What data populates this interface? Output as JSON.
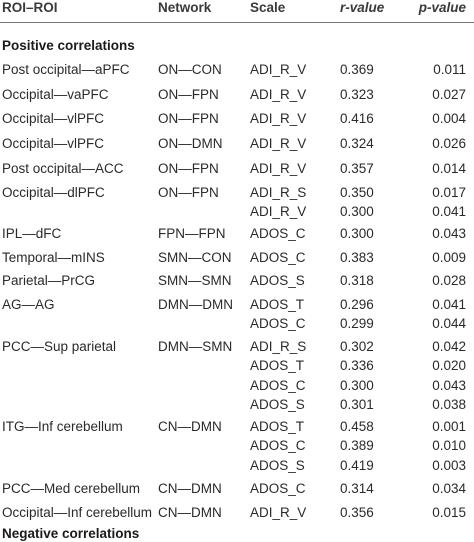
{
  "headers": {
    "roi": "ROI–ROI",
    "network": "Network",
    "scale": "Scale",
    "r": "r-value",
    "p": "p-value"
  },
  "sections": {
    "positive": "Positive correlations",
    "negative": "Negative correlations"
  },
  "rows": [
    {
      "roi": "Post occipital—aPFC",
      "network": "ON—CON",
      "scale": "ADI_R_V",
      "r": "0.369",
      "p": "0.011"
    },
    {
      "roi": "Occipital—vaPFC",
      "network": "ON—FPN",
      "scale": "ADI_R_V",
      "r": "0.323",
      "p": "0.027"
    },
    {
      "roi": "Occipital—vlPFC",
      "network": "ON—FPN",
      "scale": "ADI_R_V",
      "r": "0.416",
      "p": "0.004"
    },
    {
      "roi": "Occipital—vlPFC",
      "network": "ON—DMN",
      "scale": "ADI_R_V",
      "r": "0.324",
      "p": "0.026"
    },
    {
      "roi": "Post occipital—ACC",
      "network": "ON—FPN",
      "scale": "ADI_R_V",
      "r": "0.357",
      "p": "0.014"
    },
    {
      "roi": "Occipital—dlPFC",
      "network": "ON—FPN",
      "scale": "ADI_R_S",
      "r": "0.350",
      "p": "0.017"
    },
    {
      "roi": "",
      "network": "",
      "scale": "ADI_R_V",
      "r": "0.300",
      "p": "0.041"
    },
    {
      "roi": "IPL—dFC",
      "network": "FPN—FPN",
      "scale": "ADOS_C",
      "r": "0.300",
      "p": "0.043"
    },
    {
      "roi": "Temporal—mINS",
      "network": "SMN—CON",
      "scale": "ADOS_C",
      "r": "0.383",
      "p": "0.009"
    },
    {
      "roi": "Parietal—PrCG",
      "network": "SMN—SMN",
      "scale": "ADOS_S",
      "r": "0.318",
      "p": "0.028"
    },
    {
      "roi": "AG—AG",
      "network": "DMN—DMN",
      "scale": "ADOS_T",
      "r": "0.296",
      "p": "0.041"
    },
    {
      "roi": "",
      "network": "",
      "scale": "ADOS_C",
      "r": "0.299",
      "p": "0.044"
    },
    {
      "roi": "PCC—Sup parietal",
      "network": "DMN—SMN",
      "scale": "ADI_R_S",
      "r": "0.302",
      "p": "0.042"
    },
    {
      "roi": "",
      "network": "",
      "scale": "ADOS_T",
      "r": "0.336",
      "p": "0.020"
    },
    {
      "roi": "",
      "network": "",
      "scale": "ADOS_C",
      "r": "0.300",
      "p": "0.043"
    },
    {
      "roi": "",
      "network": "",
      "scale": "ADOS_S",
      "r": "0.301",
      "p": "0.038"
    },
    {
      "roi": "ITG—Inf cerebellum",
      "network": "CN—DMN",
      "scale": "ADOS_T",
      "r": "0.458",
      "p": "0.001"
    },
    {
      "roi": "",
      "network": "",
      "scale": "ADOS_C",
      "r": "0.389",
      "p": "0.010"
    },
    {
      "roi": "",
      "network": "",
      "scale": "ADOS_S",
      "r": "0.419",
      "p": "0.003"
    },
    {
      "roi": "PCC—Med cerebellum",
      "network": "CN—DMN",
      "scale": "ADOS_C",
      "r": "0.314",
      "p": "0.034"
    },
    {
      "roi": "Occipital—Inf cerebellum",
      "network": "CN—DMN",
      "scale": "ADI_R_V",
      "r": "0.356",
      "p": "0.015"
    }
  ]
}
